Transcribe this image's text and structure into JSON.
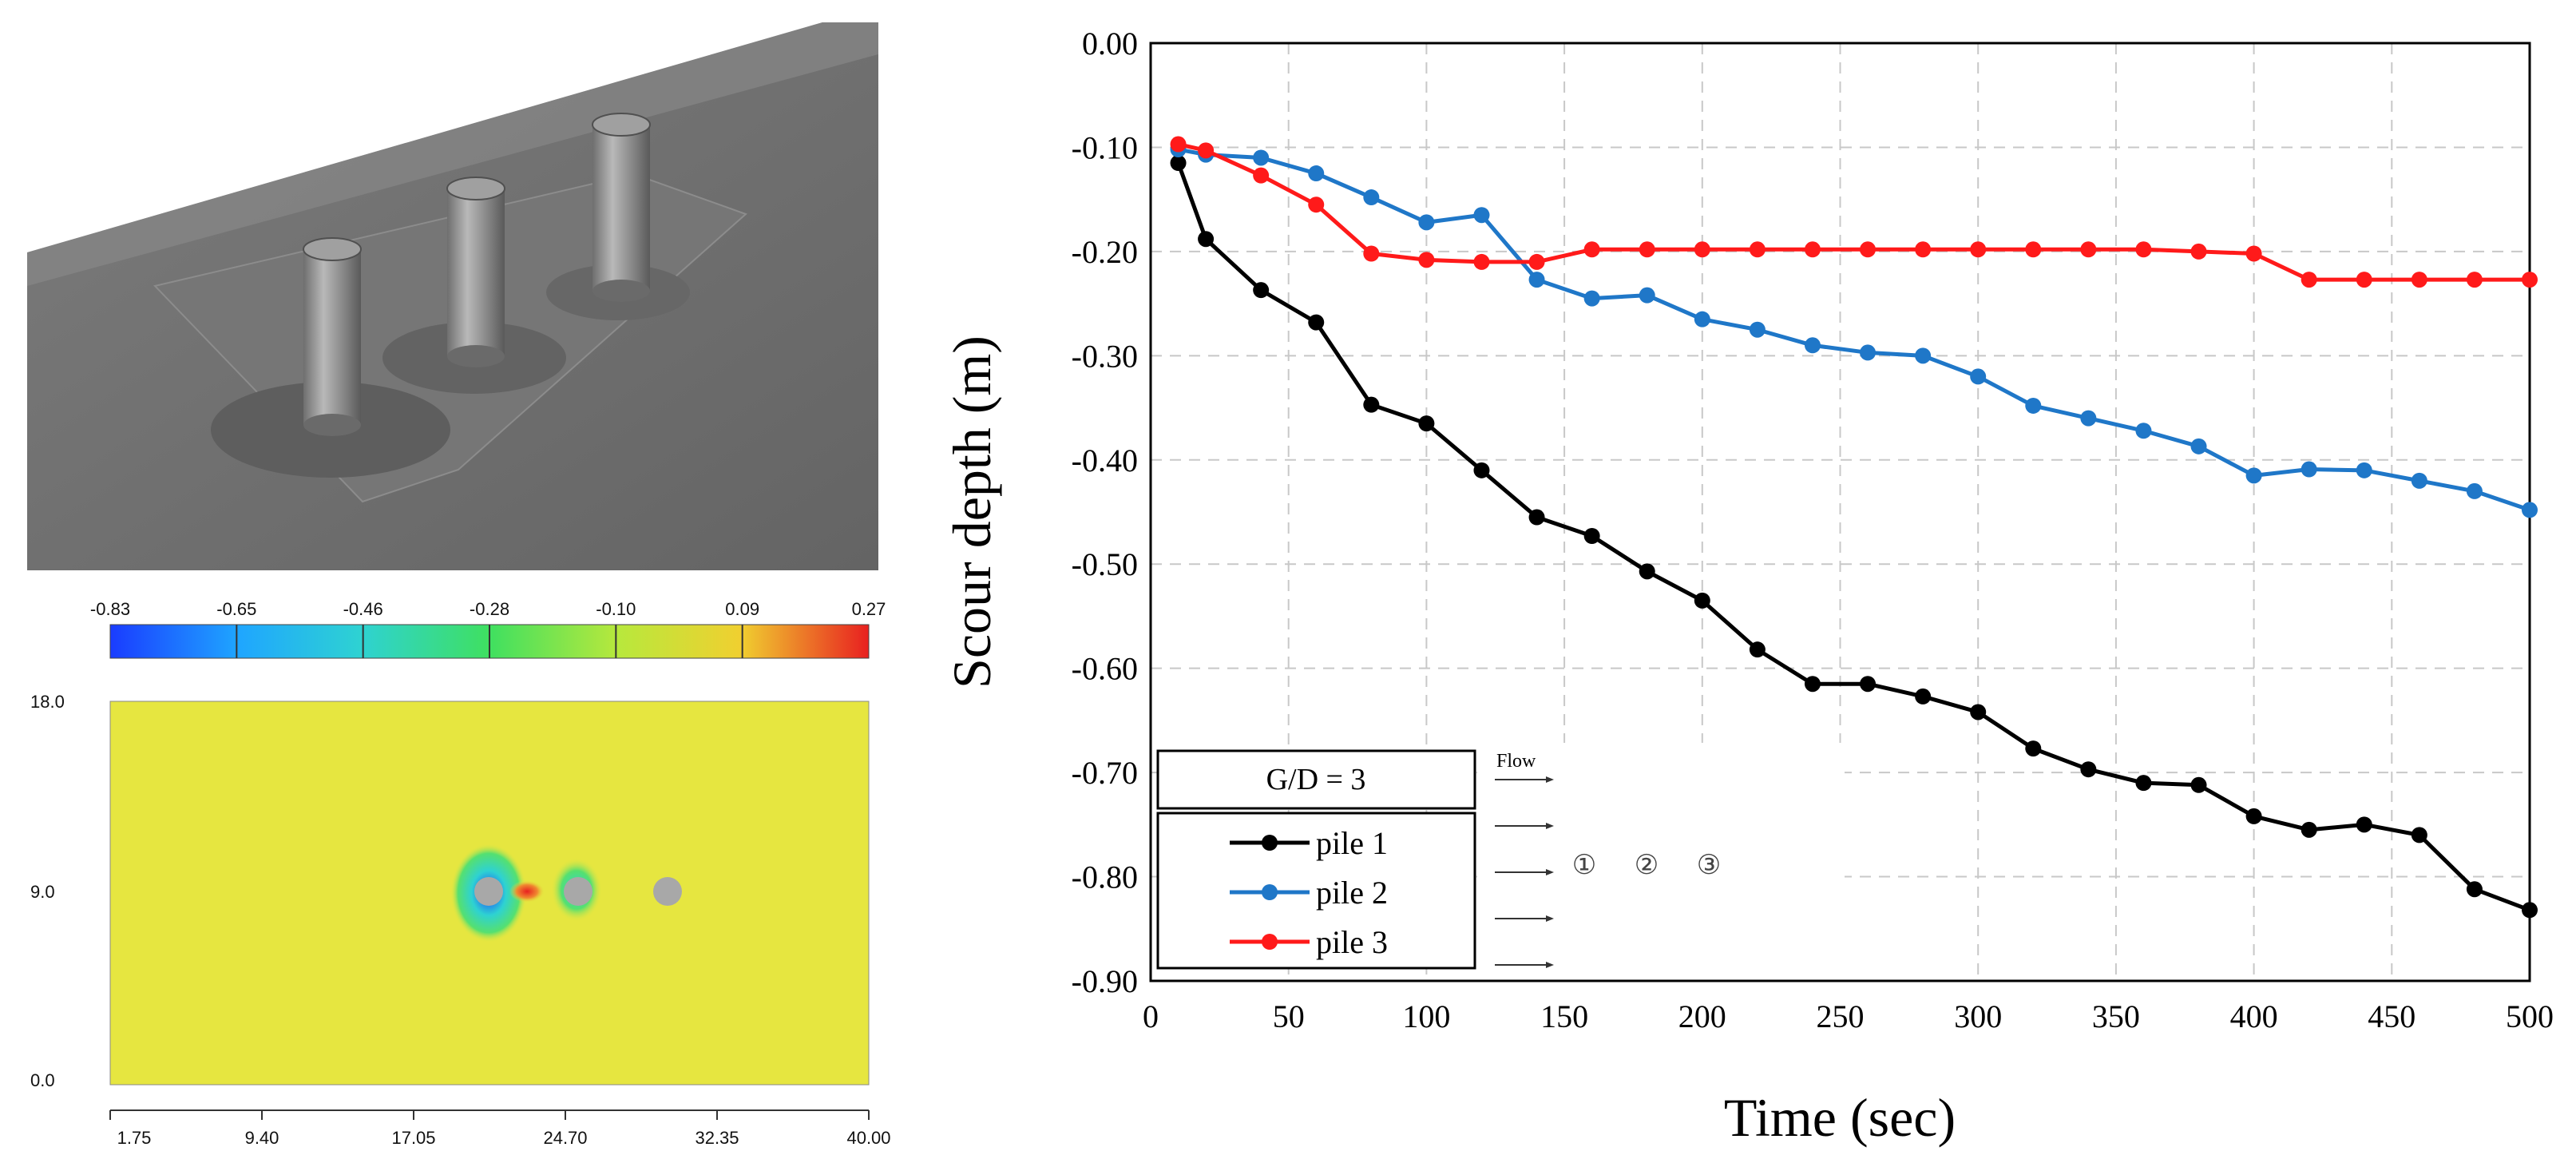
{
  "render_3d": {
    "caption": "",
    "piles": 3
  },
  "contour": {
    "colorbar_ticks": [
      "-0.83",
      "-0.65",
      "-0.46",
      "-0.28",
      "-0.10",
      "0.09",
      "0.27"
    ],
    "y_ticks": [
      "18.0",
      "9.0",
      "0.0"
    ],
    "x_ticks": [
      "1.75",
      "9.40",
      "17.05",
      "24.70",
      "32.35",
      "40.00"
    ],
    "colors": {
      "field": "#e6e640",
      "low": "#1a3cff",
      "mid": "#2ed2d2",
      "high": "#e82020",
      "pile": "#a8a8a8"
    }
  },
  "chart_data": {
    "type": "line",
    "title": "",
    "xlabel": "Time (sec)",
    "ylabel": "Scour depth (m)",
    "xlim": [
      0,
      500
    ],
    "ylim": [
      -0.9,
      0.0
    ],
    "x_ticks": [
      "0",
      "50",
      "100",
      "150",
      "200",
      "250",
      "300",
      "350",
      "400",
      "450",
      "500"
    ],
    "y_ticks": [
      "0.00",
      "-0.10",
      "-0.20",
      "-0.30",
      "-0.40",
      "-0.50",
      "-0.60",
      "-0.70",
      "-0.80",
      "-0.90"
    ],
    "grid": true,
    "legend": {
      "title": "G/D = 3",
      "placement": "bottom-left",
      "flow_label": "Flow",
      "pile_markers": [
        "①",
        "②",
        "③"
      ]
    },
    "series": [
      {
        "name": "pile 1",
        "color": "#000000",
        "x": [
          10,
          20,
          40,
          60,
          80,
          100,
          120,
          140,
          160,
          180,
          200,
          220,
          240,
          260,
          280,
          300,
          320,
          340,
          360,
          380,
          400,
          420,
          440,
          460,
          480,
          500
        ],
        "values": [
          -0.115,
          -0.188,
          -0.237,
          -0.268,
          -0.347,
          -0.365,
          -0.41,
          -0.455,
          -0.473,
          -0.507,
          -0.535,
          -0.582,
          -0.615,
          -0.615,
          -0.627,
          -0.642,
          -0.677,
          -0.697,
          -0.71,
          -0.712,
          -0.742,
          -0.755,
          -0.75,
          -0.76,
          -0.812,
          -0.832
        ]
      },
      {
        "name": "pile 2",
        "color": "#1f77c8",
        "x": [
          10,
          20,
          40,
          60,
          80,
          100,
          120,
          140,
          160,
          180,
          200,
          220,
          240,
          260,
          280,
          300,
          320,
          340,
          360,
          380,
          400,
          420,
          440,
          460,
          480,
          500
        ],
        "values": [
          -0.102,
          -0.107,
          -0.11,
          -0.125,
          -0.148,
          -0.172,
          -0.165,
          -0.227,
          -0.245,
          -0.242,
          -0.265,
          -0.275,
          -0.29,
          -0.297,
          -0.3,
          -0.32,
          -0.348,
          -0.36,
          -0.372,
          -0.387,
          -0.415,
          -0.409,
          -0.41,
          -0.42,
          -0.43,
          -0.448
        ]
      },
      {
        "name": "pile 3",
        "color": "#ff1a1a",
        "x": [
          10,
          20,
          40,
          60,
          80,
          100,
          120,
          140,
          160,
          180,
          200,
          220,
          240,
          260,
          280,
          300,
          320,
          340,
          360,
          380,
          400,
          420,
          440,
          460,
          480,
          500
        ],
        "values": [
          -0.097,
          -0.103,
          -0.127,
          -0.155,
          -0.202,
          -0.208,
          -0.21,
          -0.21,
          -0.198,
          -0.198,
          -0.198,
          -0.198,
          -0.198,
          -0.198,
          -0.198,
          -0.198,
          -0.198,
          -0.198,
          -0.198,
          -0.2,
          -0.202,
          -0.227,
          -0.227,
          -0.227,
          -0.227,
          -0.227
        ]
      }
    ]
  }
}
